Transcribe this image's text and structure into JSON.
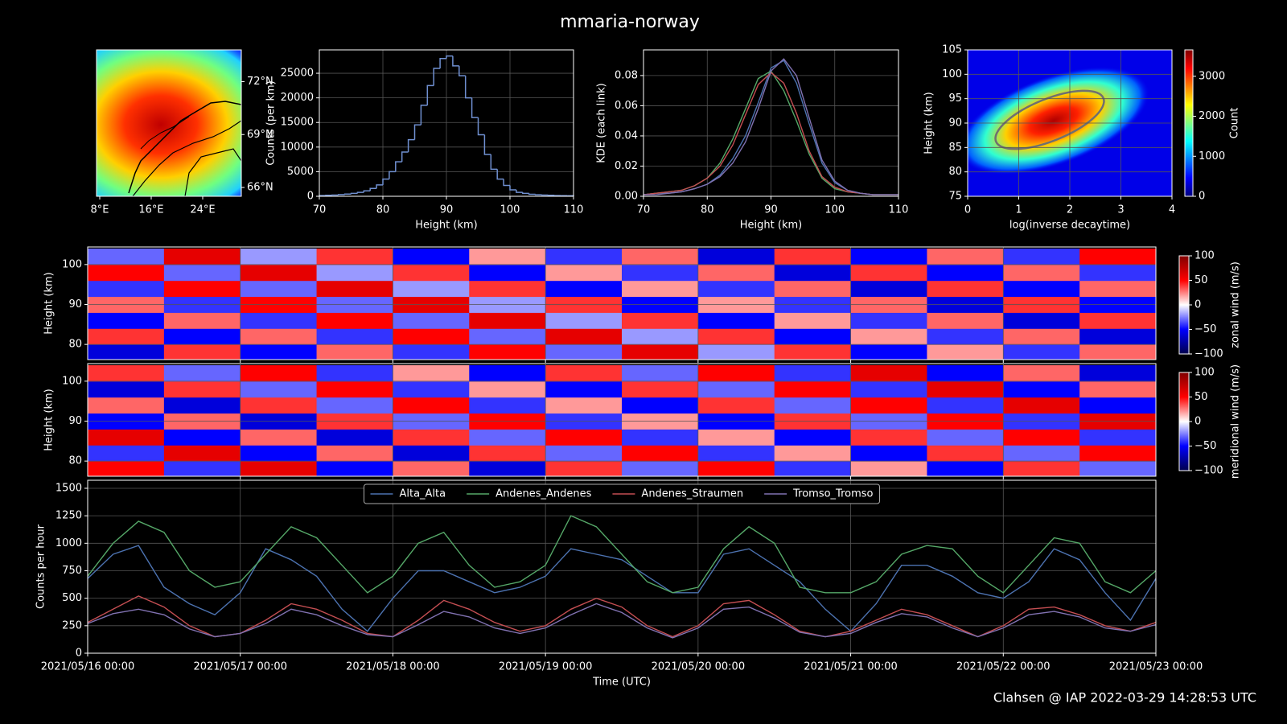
{
  "title": "mmaria-norway",
  "footer": "Clahsen @ IAP 2022-03-29 14:28:53 UTC",
  "chart_data": [
    {
      "type": "map",
      "xlim": [
        7.5,
        30
      ],
      "ylim": [
        65.5,
        73.8
      ],
      "ytick_side": "right",
      "xticks": [
        {
          "value": 8,
          "label": "8°E"
        },
        {
          "value": 16,
          "label": "16°E"
        },
        {
          "value": 24,
          "label": "24°E"
        }
      ],
      "yticks": [
        {
          "value": 72,
          "label": "72°N"
        },
        {
          "value": 69,
          "label": "69°N"
        },
        {
          "value": 66,
          "label": "66°N"
        }
      ]
    },
    {
      "type": "histogram",
      "xlabel": "Height (km)",
      "ylabel": "Counts (per km)",
      "color": "#6f8fd0",
      "grid": true,
      "xlim": [
        70,
        110
      ],
      "ylim": [
        0,
        29750
      ],
      "xticks": [
        70,
        80,
        90,
        100,
        110
      ],
      "yticks": [
        0,
        5000,
        10000,
        15000,
        20000,
        25000
      ],
      "bins": [
        70,
        71,
        72,
        73,
        74,
        75,
        76,
        77,
        78,
        79,
        80,
        81,
        82,
        83,
        84,
        85,
        86,
        87,
        88,
        89,
        90,
        91,
        92,
        93,
        94,
        95,
        96,
        97,
        98,
        99,
        100,
        101,
        102,
        103,
        104,
        105,
        106,
        107,
        108,
        109,
        110
      ],
      "counts": [
        150,
        200,
        250,
        350,
        450,
        600,
        800,
        1100,
        1600,
        2300,
        3500,
        5000,
        7000,
        9000,
        11500,
        14500,
        18500,
        22500,
        26000,
        28000,
        28500,
        26500,
        24500,
        20000,
        16000,
        12500,
        8500,
        5500,
        3500,
        2200,
        1300,
        800,
        600,
        400,
        300,
        250,
        200,
        150,
        120,
        100
      ]
    },
    {
      "type": "line",
      "xlabel": "Height (km)",
      "ylabel": "KDE (each link)",
      "grid": true,
      "xlim": [
        70,
        110
      ],
      "ylim": [
        0,
        0.097
      ],
      "xticks": [
        70,
        80,
        90,
        100,
        110
      ],
      "yticks": [
        {
          "value": 0,
          "label": "0.00"
        },
        {
          "value": 0.02,
          "label": "0.02"
        },
        {
          "value": 0.04,
          "label": "0.04"
        },
        {
          "value": 0.06,
          "label": "0.06"
        },
        {
          "value": 0.08,
          "label": "0.08"
        }
      ],
      "x": [
        70,
        72,
        74,
        76,
        78,
        80,
        82,
        84,
        86,
        88,
        90,
        92,
        94,
        96,
        98,
        100,
        102,
        104,
        106,
        108,
        110
      ],
      "series": [
        {
          "color": "#4c72b0",
          "values": [
            0.001,
            0.002,
            0.002,
            0.003,
            0.005,
            0.008,
            0.014,
            0.025,
            0.04,
            0.062,
            0.085,
            0.09,
            0.075,
            0.048,
            0.022,
            0.009,
            0.004,
            0.002,
            0.001,
            0.001,
            0.001
          ]
        },
        {
          "color": "#55a868",
          "values": [
            0.001,
            0.002,
            0.003,
            0.004,
            0.007,
            0.012,
            0.022,
            0.038,
            0.058,
            0.078,
            0.083,
            0.07,
            0.05,
            0.028,
            0.012,
            0.005,
            0.003,
            0.002,
            0.001,
            0.001,
            0.001
          ]
        },
        {
          "color": "#c44e52",
          "values": [
            0.001,
            0.002,
            0.003,
            0.004,
            0.007,
            0.012,
            0.02,
            0.034,
            0.054,
            0.074,
            0.082,
            0.075,
            0.055,
            0.03,
            0.013,
            0.006,
            0.003,
            0.002,
            0.001,
            0.001,
            0.001
          ]
        },
        {
          "color": "#8172b2",
          "values": [
            0.001,
            0.001,
            0.002,
            0.003,
            0.005,
            0.008,
            0.013,
            0.022,
            0.036,
            0.058,
            0.083,
            0.091,
            0.08,
            0.052,
            0.024,
            0.01,
            0.004,
            0.002,
            0.001,
            0.001,
            0.001
          ]
        }
      ]
    },
    {
      "type": "density",
      "xlabel": "log(inverse decaytime)",
      "ylabel": "Height (km)",
      "grid": true,
      "xlim": [
        0,
        4
      ],
      "ylim": [
        75,
        105
      ],
      "xticks": [
        0,
        1,
        2,
        3,
        4
      ],
      "yticks": [
        75,
        80,
        85,
        90,
        95,
        100,
        105
      ],
      "colormap": "jet",
      "colorbar": {
        "label": "Count",
        "lim": [
          0,
          3660
        ],
        "ticks": [
          0,
          1000,
          2000,
          3000
        ]
      }
    },
    {
      "type": "heatmap",
      "ylabel": "Height (km)",
      "grid": true,
      "xtick_labels": false,
      "colormap": "seismic",
      "xlim": [
        0,
        168
      ],
      "ylim": [
        76.2,
        104.4
      ],
      "xticks": [
        24,
        48,
        72,
        96,
        120,
        144
      ],
      "yticks": [
        80,
        90,
        100
      ],
      "xbins": [
        0,
        12,
        24,
        36,
        48,
        60,
        72,
        84,
        96,
        108,
        120,
        132,
        144,
        156,
        168
      ],
      "ybins": [
        76,
        80,
        84,
        88,
        92,
        96,
        100,
        104
      ],
      "z": [
        [
          -60,
          40,
          -50,
          30,
          -40,
          50,
          -30,
          60,
          -20,
          40,
          -50,
          20,
          -40,
          30
        ],
        [
          40,
          -50,
          30,
          -40,
          50,
          -30,
          60,
          -20,
          40,
          -50,
          20,
          -40,
          30,
          -60
        ],
        [
          -50,
          30,
          -40,
          50,
          -30,
          60,
          -20,
          40,
          -50,
          20,
          -40,
          30,
          -60,
          40
        ],
        [
          30,
          -40,
          50,
          -30,
          60,
          -20,
          40,
          -50,
          20,
          -40,
          30,
          -60,
          40,
          -50
        ],
        [
          -40,
          50,
          -30,
          60,
          -20,
          40,
          -50,
          20,
          -40,
          30,
          -60,
          40,
          -50,
          30
        ],
        [
          50,
          -30,
          60,
          -20,
          40,
          -50,
          20,
          -40,
          30,
          -60,
          40,
          -50,
          30,
          -40
        ],
        [
          -30,
          60,
          -20,
          40,
          -50,
          20,
          -40,
          30,
          -60,
          40,
          -50,
          30,
          -40,
          50
        ]
      ],
      "colorbar": {
        "label": "zonal wind (m/s)",
        "lim": [
          -100,
          100
        ],
        "ticks": [
          {
            "value": -100,
            "label": "−100"
          },
          {
            "value": -50,
            "label": "−50"
          },
          0,
          50,
          100
        ]
      }
    },
    {
      "type": "heatmap",
      "ylabel": "Height (km)",
      "grid": true,
      "xtick_labels": false,
      "colormap": "seismic",
      "xlim": [
        0,
        168
      ],
      "ylim": [
        76.2,
        104.4
      ],
      "xticks": [
        24,
        48,
        72,
        96,
        120,
        144
      ],
      "yticks": [
        80,
        90,
        100
      ],
      "xbins": [
        0,
        12,
        24,
        36,
        48,
        60,
        72,
        84,
        96,
        108,
        120,
        132,
        144,
        156,
        168
      ],
      "ybins": [
        76,
        80,
        84,
        88,
        92,
        96,
        100,
        104
      ],
      "z": [
        [
          50,
          -40,
          60,
          -50,
          30,
          -60,
          40,
          -30,
          50,
          -40,
          20,
          -50,
          40,
          -30
        ],
        [
          -40,
          60,
          -50,
          30,
          -60,
          40,
          -30,
          50,
          -40,
          20,
          -50,
          40,
          -30,
          50
        ],
        [
          60,
          -50,
          30,
          -60,
          40,
          -30,
          50,
          -40,
          20,
          -50,
          40,
          -30,
          50,
          -40
        ],
        [
          -50,
          30,
          -60,
          40,
          -30,
          50,
          -40,
          20,
          -50,
          40,
          -30,
          50,
          -40,
          60
        ],
        [
          30,
          -60,
          40,
          -30,
          50,
          -40,
          20,
          -50,
          40,
          -30,
          50,
          -40,
          60,
          -50
        ],
        [
          -60,
          40,
          -30,
          50,
          -40,
          20,
          -50,
          40,
          -30,
          50,
          -40,
          60,
          -50,
          30
        ],
        [
          40,
          -30,
          50,
          -40,
          20,
          -50,
          40,
          -30,
          50,
          -40,
          60,
          -50,
          30,
          -60
        ]
      ],
      "colorbar": {
        "label": "meridional wind (m/s)",
        "lim": [
          -100,
          100
        ],
        "ticks": [
          {
            "value": -100,
            "label": "−100"
          },
          {
            "value": -50,
            "label": "−50"
          },
          0,
          50,
          100
        ]
      }
    },
    {
      "type": "line",
      "xlabel": "Time (UTC)",
      "ylabel": "Counts per hour",
      "grid": true,
      "legend": "upper center",
      "xlim": [
        0,
        168
      ],
      "ylim": [
        0,
        1573
      ],
      "xticks": [
        {
          "value": 0,
          "label": "2021/05/16 00:00"
        },
        {
          "value": 24,
          "label": "2021/05/17 00:00"
        },
        {
          "value": 48,
          "label": "2021/05/18 00:00"
        },
        {
          "value": 72,
          "label": "2021/05/19 00:00"
        },
        {
          "value": 96,
          "label": "2021/05/20 00:00"
        },
        {
          "value": 120,
          "label": "2021/05/21 00:00"
        },
        {
          "value": 144,
          "label": "2021/05/22 00:00"
        },
        {
          "value": 168,
          "label": "2021/05/23 00:00"
        }
      ],
      "yticks": [
        0,
        250,
        500,
        750,
        1000,
        1250,
        1500
      ],
      "x": [
        0,
        4,
        8,
        12,
        16,
        20,
        24,
        28,
        32,
        36,
        40,
        44,
        48,
        52,
        56,
        60,
        64,
        68,
        72,
        76,
        80,
        84,
        88,
        92,
        96,
        100,
        104,
        108,
        112,
        116,
        120,
        124,
        128,
        132,
        136,
        140,
        144,
        148,
        152,
        156,
        160,
        164,
        168
      ],
      "series": [
        {
          "name": "Alta_Alta",
          "color": "#4c72b0",
          "values": [
            680,
            900,
            980,
            600,
            450,
            350,
            550,
            950,
            850,
            700,
            400,
            200,
            500,
            750,
            750,
            650,
            550,
            600,
            700,
            950,
            900,
            850,
            700,
            550,
            550,
            900,
            950,
            800,
            650,
            400,
            200,
            450,
            800,
            800,
            700,
            550,
            500,
            650,
            950,
            850,
            550,
            300,
            680
          ]
        },
        {
          "name": "Andenes_Andenes",
          "color": "#55a868",
          "values": [
            700,
            1000,
            1200,
            1100,
            750,
            600,
            650,
            900,
            1150,
            1050,
            800,
            550,
            700,
            1000,
            1100,
            800,
            600,
            650,
            800,
            1250,
            1150,
            900,
            650,
            550,
            600,
            950,
            1150,
            1000,
            600,
            550,
            550,
            650,
            900,
            980,
            950,
            700,
            550,
            800,
            1050,
            1000,
            650,
            550,
            750
          ]
        },
        {
          "name": "Andenes_Straumen",
          "color": "#c44e52",
          "values": [
            280,
            400,
            520,
            420,
            250,
            150,
            180,
            300,
            450,
            400,
            300,
            180,
            150,
            300,
            480,
            400,
            280,
            200,
            250,
            400,
            500,
            420,
            250,
            150,
            250,
            450,
            480,
            350,
            200,
            150,
            200,
            300,
            400,
            350,
            250,
            150,
            250,
            400,
            420,
            350,
            250,
            200,
            280
          ]
        },
        {
          "name": "Tromso_Tromso",
          "color": "#8172b2",
          "values": [
            270,
            360,
            400,
            350,
            220,
            150,
            180,
            270,
            400,
            350,
            250,
            170,
            150,
            260,
            380,
            330,
            230,
            180,
            230,
            350,
            450,
            370,
            230,
            140,
            230,
            400,
            420,
            320,
            190,
            150,
            180,
            280,
            360,
            330,
            230,
            150,
            230,
            350,
            380,
            330,
            230,
            200,
            260
          ]
        }
      ]
    }
  ]
}
